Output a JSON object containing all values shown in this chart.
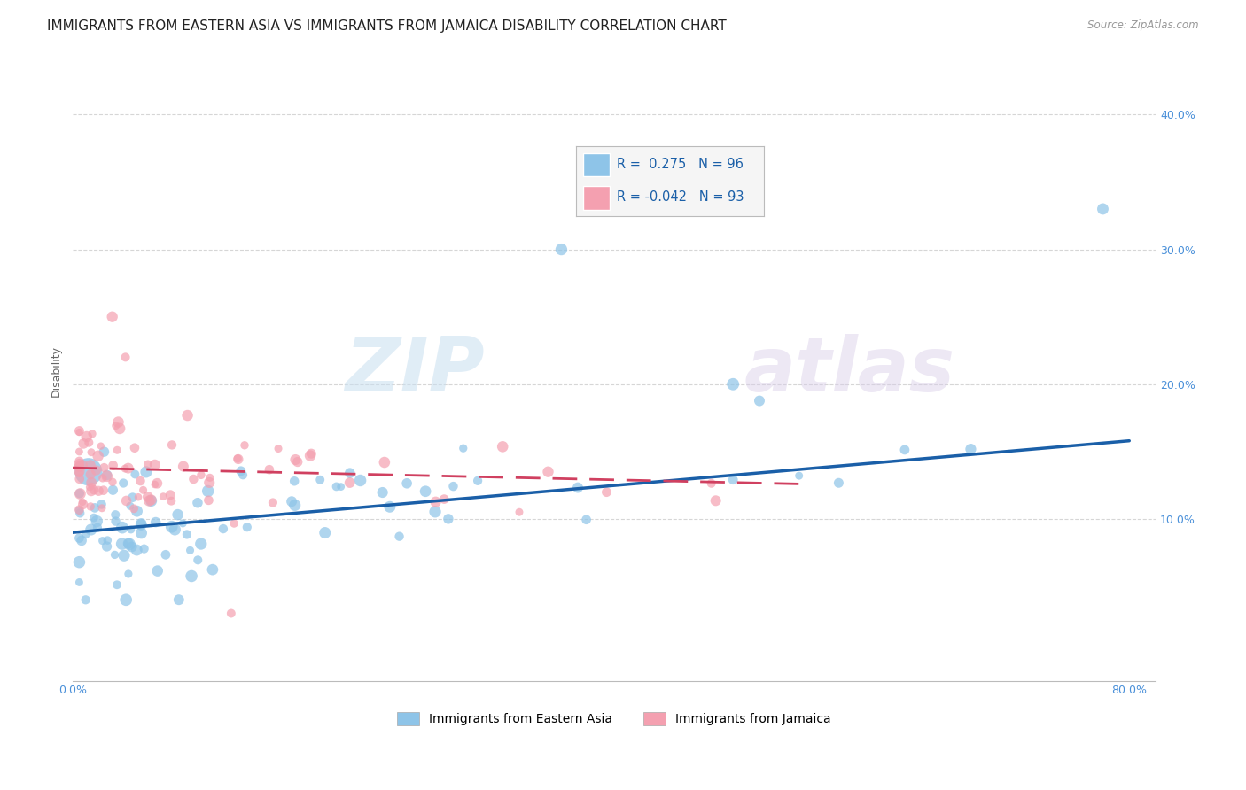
{
  "title": "IMMIGRANTS FROM EASTERN ASIA VS IMMIGRANTS FROM JAMAICA DISABILITY CORRELATION CHART",
  "source": "Source: ZipAtlas.com",
  "ylabel": "Disability",
  "xlim": [
    0.0,
    0.82
  ],
  "ylim": [
    -0.02,
    0.44
  ],
  "R_blue": 0.275,
  "N_blue": 96,
  "R_pink": -0.042,
  "N_pink": 93,
  "blue_color": "#8ec4e8",
  "pink_color": "#f4a0b0",
  "trendline_blue_color": "#1a5fa8",
  "trendline_pink_color": "#d04060",
  "background_color": "#ffffff",
  "grid_color": "#cccccc",
  "legend_label_blue": "Immigrants from Eastern Asia",
  "legend_label_pink": "Immigrants from Jamaica",
  "tick_color": "#4a90d9",
  "title_fontsize": 11,
  "axis_label_fontsize": 9,
  "tick_fontsize": 9,
  "legend_fontsize": 10,
  "x_tick_positions": [
    0.0,
    0.8
  ],
  "x_tick_labels": [
    "0.0%",
    "80.0%"
  ],
  "y_tick_positions": [
    0.1,
    0.2,
    0.3,
    0.4
  ],
  "y_tick_labels": [
    "10.0%",
    "20.0%",
    "30.0%",
    "40.0%"
  ],
  "blue_trendline_x": [
    0.0,
    0.8
  ],
  "blue_trendline_y": [
    0.09,
    0.158
  ],
  "pink_trendline_x": [
    0.0,
    0.55
  ],
  "pink_trendline_y": [
    0.138,
    0.126
  ]
}
